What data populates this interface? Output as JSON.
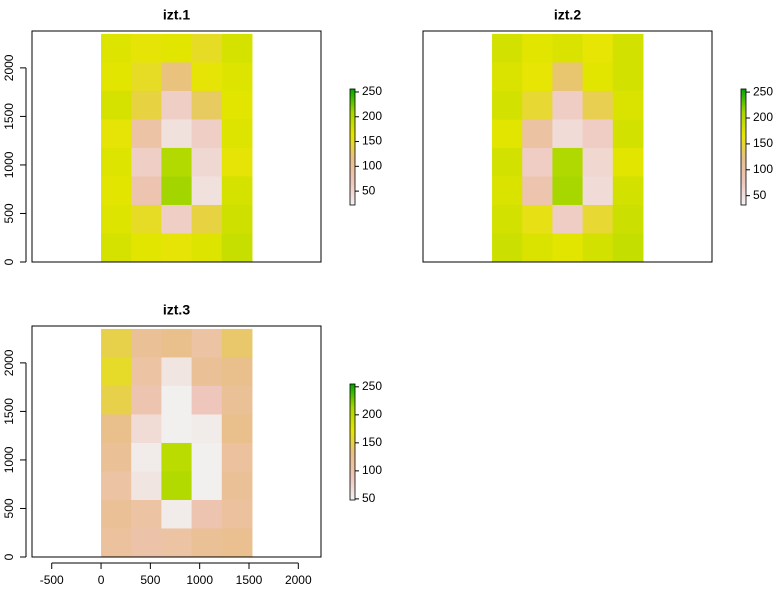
{
  "chart_data": [
    {
      "type": "raster",
      "title": "izt.1",
      "xlim": [
        -700,
        2230
      ],
      "ylim": [
        0,
        2380
      ],
      "extent": [
        0,
        1530,
        0,
        2350
      ],
      "yticks": [
        0,
        500,
        1000,
        1500,
        2000
      ],
      "zlim": [
        22,
        256
      ],
      "zticks": [
        50,
        100,
        150,
        200,
        250
      ],
      "colors": [
        "#F2F2F2",
        "#EEC6BC",
        "#E9BF8A",
        "#E6E600",
        "#A6D700",
        "#00A600"
      ],
      "values": [
        [
          170,
          160,
          165,
          150,
          175
        ],
        [
          165,
          150,
          120,
          160,
          170
        ],
        [
          175,
          140,
          60,
          130,
          165
        ],
        [
          160,
          90,
          40,
          60,
          170
        ],
        [
          170,
          60,
          200,
          50,
          160
        ],
        [
          165,
          80,
          210,
          40,
          175
        ],
        [
          170,
          150,
          60,
          140,
          180
        ],
        [
          175,
          165,
          160,
          170,
          185
        ]
      ]
    },
    {
      "type": "raster",
      "title": "izt.2",
      "xlim": [
        -700,
        2230
      ],
      "ylim": [
        0,
        2380
      ],
      "extent": [
        0,
        1530,
        0,
        2350
      ],
      "zlim": [
        32,
        256
      ],
      "zticks": [
        50,
        100,
        150,
        200,
        250
      ],
      "colors": [
        "#F2F2F2",
        "#EEC6BC",
        "#E9BF8A",
        "#E6E600",
        "#A6D700",
        "#00A600"
      ],
      "values": [
        [
          180,
          170,
          175,
          165,
          180
        ],
        [
          175,
          165,
          130,
          170,
          180
        ],
        [
          180,
          150,
          70,
          140,
          175
        ],
        [
          170,
          100,
          55,
          70,
          180
        ],
        [
          180,
          70,
          205,
          60,
          170
        ],
        [
          175,
          90,
          210,
          55,
          180
        ],
        [
          180,
          160,
          70,
          150,
          185
        ],
        [
          185,
          175,
          170,
          180,
          190
        ]
      ]
    },
    {
      "type": "raster",
      "title": "izt.3",
      "xlim": [
        -700,
        2230
      ],
      "ylim": [
        0,
        2380
      ],
      "extent": [
        0,
        1530,
        0,
        2350
      ],
      "xticks": [
        -500,
        0,
        500,
        1000,
        1500,
        2000
      ],
      "yticks": [
        0,
        500,
        1000,
        1500,
        2000
      ],
      "zlim": [
        48,
        255
      ],
      "zticks": [
        50,
        100,
        150,
        200,
        250
      ],
      "colors": [
        "#F2F2F2",
        "#EEC6BC",
        "#E9BF8A",
        "#E6E600",
        "#A6D700",
        "#00A600"
      ],
      "values": [
        [
          150,
          120,
          130,
          110,
          140
        ],
        [
          160,
          110,
          60,
          120,
          130
        ],
        [
          150,
          100,
          50,
          90,
          120
        ],
        [
          130,
          70,
          50,
          55,
          130
        ],
        [
          120,
          55,
          200,
          50,
          115
        ],
        [
          110,
          60,
          205,
          50,
          120
        ],
        [
          120,
          110,
          55,
          100,
          115
        ],
        [
          115,
          105,
          110,
          120,
          125
        ]
      ]
    }
  ]
}
